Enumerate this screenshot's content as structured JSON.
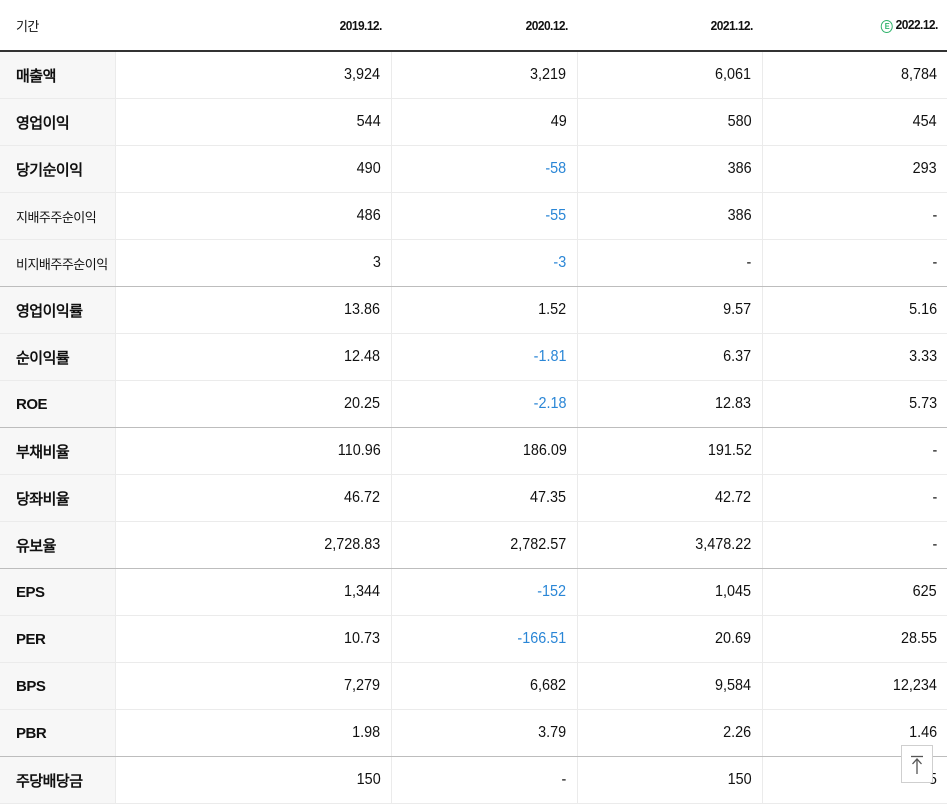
{
  "header": {
    "label": "기간",
    "periods": [
      {
        "label": "2019.12.",
        "estimate": false
      },
      {
        "label": "2020.12.",
        "estimate": false
      },
      {
        "label": "2021.12.",
        "estimate": false
      },
      {
        "label": "2022.12.",
        "estimate": true,
        "badge": "E"
      }
    ]
  },
  "colors": {
    "negative": "#2a86d6",
    "estimate_badge": "#2fb36b",
    "label_bg": "#f7f7f7"
  },
  "rows": [
    {
      "label": "매출액",
      "values": [
        "3,924",
        "3,219",
        "6,061",
        "8,784"
      ]
    },
    {
      "label": "영업이익",
      "values": [
        "544",
        "49",
        "580",
        "454"
      ]
    },
    {
      "label": "당기순이익",
      "values": [
        "490",
        "-58",
        "386",
        "293"
      ]
    },
    {
      "label": "지배주주순이익",
      "values": [
        "486",
        "-55",
        "386",
        "-"
      ]
    },
    {
      "label": "비지배주주순이익",
      "values": [
        "3",
        "-3",
        "-",
        "-"
      ]
    },
    {
      "label": "영업이익률",
      "values": [
        "13.86",
        "1.52",
        "9.57",
        "5.16"
      ]
    },
    {
      "label": "순이익률",
      "values": [
        "12.48",
        "-1.81",
        "6.37",
        "3.33"
      ]
    },
    {
      "label": "ROE",
      "values": [
        "20.25",
        "-2.18",
        "12.83",
        "5.73"
      ]
    },
    {
      "label": "부채비율",
      "values": [
        "110.96",
        "186.09",
        "191.52",
        "-"
      ]
    },
    {
      "label": "당좌비율",
      "values": [
        "46.72",
        "47.35",
        "42.72",
        "-"
      ]
    },
    {
      "label": "유보율",
      "values": [
        "2,728.83",
        "2,782.57",
        "3,478.22",
        "-"
      ]
    },
    {
      "label": "EPS",
      "values": [
        "1,344",
        "-152",
        "1,045",
        "625"
      ]
    },
    {
      "label": "PER",
      "values": [
        "10.73",
        "-166.51",
        "20.69",
        "28.55"
      ]
    },
    {
      "label": "BPS",
      "values": [
        "7,279",
        "6,682",
        "9,584",
        "12,234"
      ]
    },
    {
      "label": "PBR",
      "values": [
        "1.98",
        "3.79",
        "2.26",
        "1.46"
      ]
    },
    {
      "label": "주당배당금",
      "values": [
        "150",
        "-",
        "150",
        "5"
      ]
    }
  ],
  "scroll_top_button": {
    "icon": "arrow-up-to-top-icon"
  }
}
